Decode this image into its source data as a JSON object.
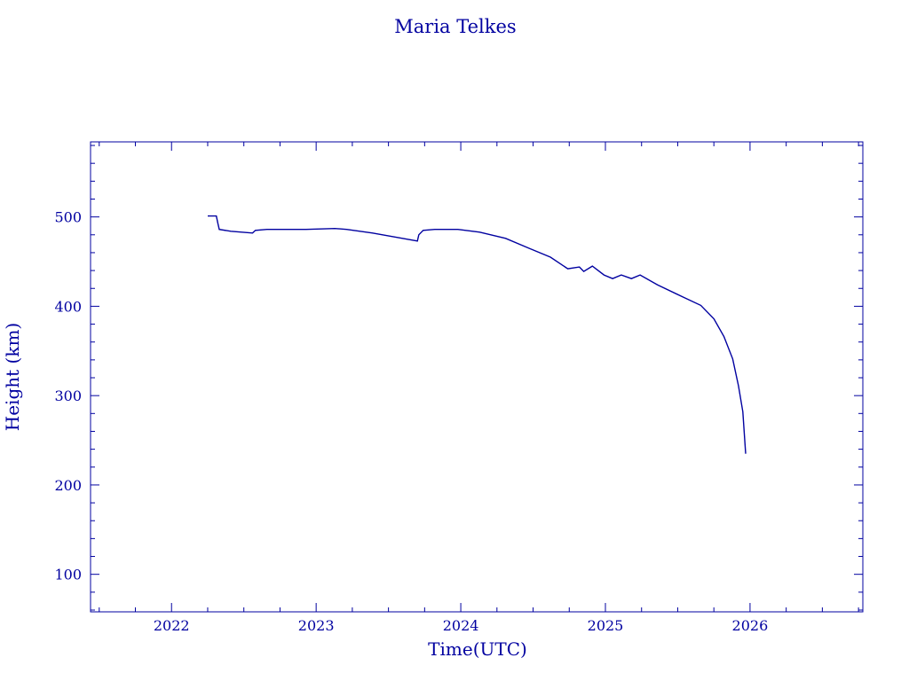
{
  "chart_data": {
    "type": "line",
    "title": "Maria Telkes",
    "xlabel": "Time(UTC)",
    "ylabel": "Height (km)",
    "xlim": [
      2021.44,
      2026.78
    ],
    "ylim": [
      58,
      584
    ],
    "xticks": [
      2022,
      2023,
      2024,
      2025,
      2026
    ],
    "yticks": [
      100,
      200,
      300,
      400,
      500
    ],
    "grid": false,
    "color": "#0000a0",
    "series": [
      {
        "x": [
          2022.25,
          2022.31,
          2022.32,
          2022.33,
          2022.41,
          2022.56,
          2022.58,
          2022.66,
          2022.78,
          2022.93,
          2023.13,
          2023.21,
          2023.39,
          2023.7,
          2023.71,
          2023.74,
          2023.82,
          2023.98,
          2024.13,
          2024.31,
          2024.47,
          2024.62,
          2024.74,
          2024.82,
          2024.85,
          2024.91,
          2024.99,
          2025.05,
          2025.11,
          2025.18,
          2025.24,
          2025.36,
          2025.54,
          2025.66,
          2025.75,
          2025.82,
          2025.88,
          2025.92,
          2025.95,
          2025.97
        ],
        "y": [
          501,
          501,
          493,
          486,
          484,
          482,
          485,
          486,
          486,
          486,
          487,
          486,
          482,
          473,
          480,
          485,
          486,
          486,
          483,
          476,
          465,
          455,
          442,
          444,
          439,
          445,
          435,
          431,
          435,
          431,
          435,
          424,
          410,
          401,
          386,
          366,
          341,
          311,
          282,
          235
        ]
      }
    ]
  }
}
